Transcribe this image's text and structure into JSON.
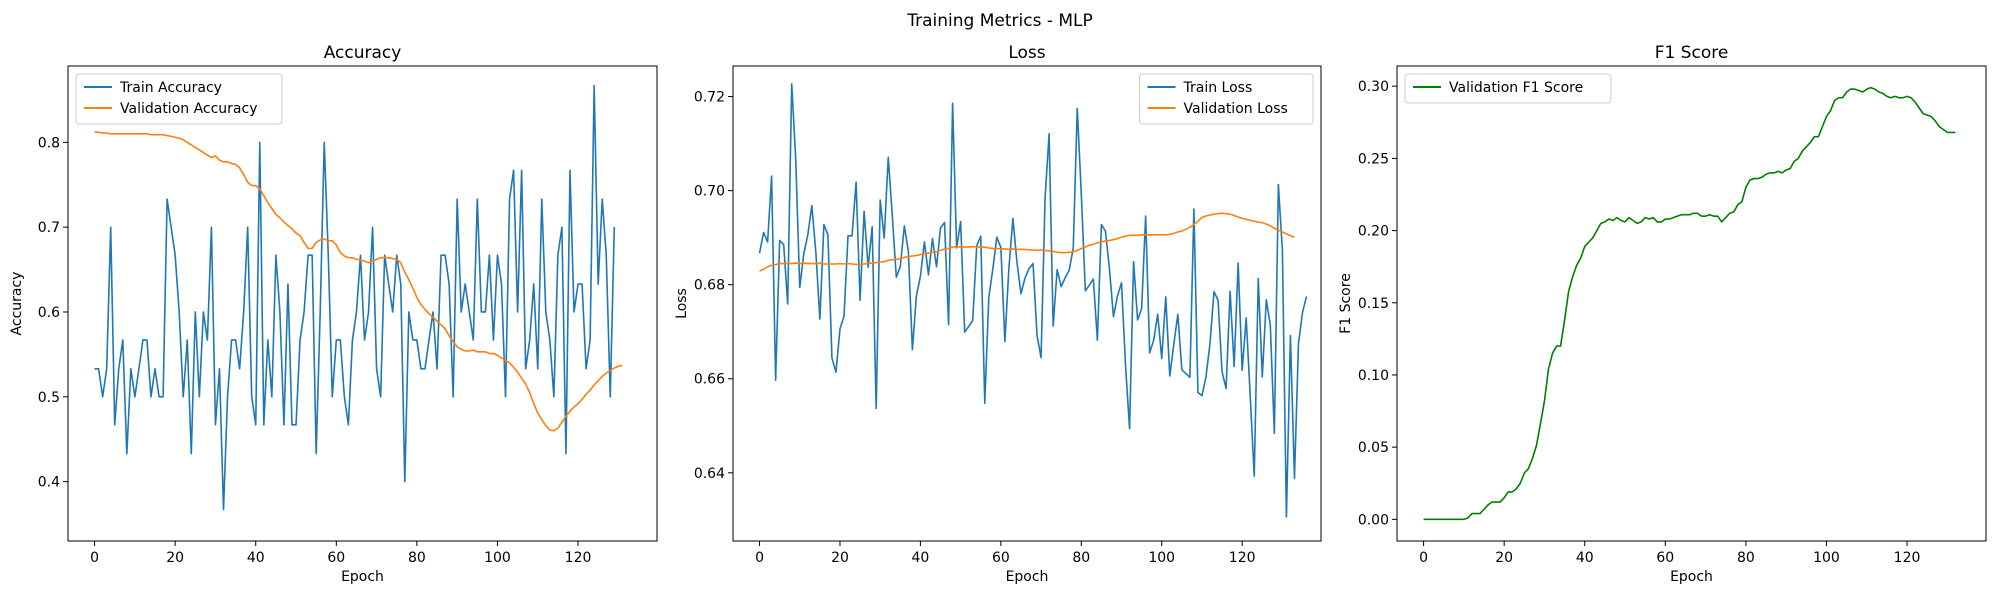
{
  "suptitle": "Training Metrics - MLP",
  "colors": {
    "train": "#1f77b4",
    "validation": "#ff7f0e",
    "f1": "#008000"
  },
  "chart_data": [
    {
      "type": "line",
      "title": "Accuracy",
      "xlabel": "Epoch",
      "ylabel": "Accuracy",
      "xlim": [
        -6.6,
        139.6
      ],
      "ylim": [
        0.33,
        0.89
      ],
      "xticks": [
        0,
        20,
        40,
        60,
        80,
        100,
        120
      ],
      "yticks": [
        0.4,
        0.5,
        0.6,
        0.7,
        0.8
      ],
      "ytick_labels": [
        "0.4",
        "0.5",
        "0.6",
        "0.7",
        "0.8"
      ],
      "grid": false,
      "legend_loc": "upper left",
      "series": [
        {
          "name": "Train Accuracy",
          "color_key": "train",
          "values": [
            0.533,
            0.533,
            0.5,
            0.533,
            0.7,
            0.467,
            0.533,
            0.567,
            0.433,
            0.533,
            0.5,
            0.533,
            0.567,
            0.567,
            0.5,
            0.533,
            0.5,
            0.5,
            0.733,
            0.7,
            0.667,
            0.6,
            0.5,
            0.567,
            0.433,
            0.6,
            0.5,
            0.6,
            0.567,
            0.7,
            0.467,
            0.533,
            0.367,
            0.5,
            0.567,
            0.567,
            0.533,
            0.6,
            0.7,
            0.5,
            0.467,
            0.8,
            0.467,
            0.567,
            0.5,
            0.667,
            0.6,
            0.467,
            0.633,
            0.467,
            0.467,
            0.567,
            0.6,
            0.667,
            0.667,
            0.433,
            0.6,
            0.8,
            0.667,
            0.5,
            0.567,
            0.567,
            0.5,
            0.467,
            0.567,
            0.6,
            0.667,
            0.567,
            0.6,
            0.7,
            0.533,
            0.5,
            0.667,
            0.633,
            0.6,
            0.667,
            0.633,
            0.4,
            0.6,
            0.567,
            0.567,
            0.533,
            0.533,
            0.567,
            0.6,
            0.533,
            0.667,
            0.667,
            0.633,
            0.5,
            0.733,
            0.6,
            0.633,
            0.6,
            0.567,
            0.733,
            0.6,
            0.6,
            0.667,
            0.567,
            0.667,
            0.633,
            0.5,
            0.733,
            0.767,
            0.6,
            0.767,
            0.533,
            0.567,
            0.633,
            0.533,
            0.733,
            0.6,
            0.567,
            0.5,
            0.667,
            0.7,
            0.433,
            0.767,
            0.6,
            0.633,
            0.633,
            0.533,
            0.567,
            0.867,
            0.633,
            0.733,
            0.667,
            0.5,
            0.7
          ]
        },
        {
          "name": "Validation Accuracy",
          "color_key": "validation",
          "values": [
            0.812,
            0.812,
            0.811,
            0.811,
            0.81,
            0.81,
            0.81,
            0.81,
            0.81,
            0.81,
            0.81,
            0.81,
            0.81,
            0.81,
            0.809,
            0.809,
            0.809,
            0.809,
            0.808,
            0.807,
            0.806,
            0.805,
            0.803,
            0.8,
            0.797,
            0.794,
            0.791,
            0.788,
            0.785,
            0.782,
            0.784,
            0.779,
            0.777,
            0.777,
            0.775,
            0.774,
            0.77,
            0.762,
            0.753,
            0.749,
            0.749,
            0.745,
            0.737,
            0.729,
            0.722,
            0.715,
            0.711,
            0.706,
            0.702,
            0.698,
            0.693,
            0.69,
            0.682,
            0.675,
            0.675,
            0.682,
            0.685,
            0.686,
            0.684,
            0.684,
            0.679,
            0.67,
            0.666,
            0.664,
            0.664,
            0.662,
            0.661,
            0.66,
            0.658,
            0.66,
            0.662,
            0.664,
            0.664,
            0.664,
            0.663,
            0.662,
            0.658,
            0.647,
            0.638,
            0.628,
            0.617,
            0.609,
            0.603,
            0.598,
            0.594,
            0.589,
            0.585,
            0.58,
            0.572,
            0.565,
            0.559,
            0.556,
            0.554,
            0.554,
            0.555,
            0.553,
            0.553,
            0.553,
            0.551,
            0.551,
            0.549,
            0.546,
            0.543,
            0.54,
            0.535,
            0.529,
            0.522,
            0.515,
            0.505,
            0.492,
            0.481,
            0.473,
            0.466,
            0.461,
            0.46,
            0.463,
            0.47,
            0.477,
            0.483,
            0.488,
            0.492,
            0.497,
            0.503,
            0.508,
            0.514,
            0.519,
            0.524,
            0.528,
            0.531,
            0.534,
            0.536,
            0.537
          ]
        }
      ]
    },
    {
      "type": "line",
      "title": "Loss",
      "xlabel": "Epoch",
      "ylabel": "Loss",
      "xlim": [
        -6.6,
        139.6
      ],
      "ylim": [
        0.6255,
        0.7265
      ],
      "xticks": [
        0,
        20,
        40,
        60,
        80,
        100,
        120
      ],
      "yticks": [
        0.64,
        0.66,
        0.68,
        0.7,
        0.72
      ],
      "ytick_labels": [
        "0.64",
        "0.66",
        "0.68",
        "0.70",
        "0.72"
      ],
      "grid": false,
      "legend_loc": "upper right",
      "series": [
        {
          "name": "Train Loss",
          "color_key": "train",
          "values": [
            0.6867,
            0.6911,
            0.6891,
            0.7031,
            0.6597,
            0.6894,
            0.6885,
            0.6759,
            0.7227,
            0.7067,
            0.6794,
            0.6866,
            0.6906,
            0.6968,
            0.6869,
            0.6727,
            0.6928,
            0.6906,
            0.6644,
            0.6614,
            0.6706,
            0.6733,
            0.6904,
            0.6904,
            0.7018,
            0.6767,
            0.6956,
            0.6837,
            0.6923,
            0.6537,
            0.698,
            0.6899,
            0.7071,
            0.6948,
            0.6816,
            0.6839,
            0.6925,
            0.6871,
            0.6662,
            0.6776,
            0.6818,
            0.6891,
            0.6821,
            0.6898,
            0.6838,
            0.6921,
            0.6932,
            0.6715,
            0.7186,
            0.6878,
            0.6934,
            0.6699,
            0.6711,
            0.6724,
            0.6883,
            0.6903,
            0.6548,
            0.6773,
            0.6833,
            0.6901,
            0.6879,
            0.6679,
            0.6835,
            0.6941,
            0.6848,
            0.6781,
            0.6814,
            0.6834,
            0.6845,
            0.6692,
            0.6645,
            0.6985,
            0.7121,
            0.6712,
            0.6832,
            0.6796,
            0.6815,
            0.6831,
            0.6878,
            0.7175,
            0.6993,
            0.6787,
            0.6799,
            0.6812,
            0.6682,
            0.6928,
            0.6914,
            0.6834,
            0.6732,
            0.6776,
            0.6804,
            0.6628,
            0.6494,
            0.6849,
            0.6725,
            0.6749,
            0.6946,
            0.6655,
            0.6682,
            0.6737,
            0.6643,
            0.6774,
            0.6606,
            0.6673,
            0.6737,
            0.6619,
            0.6611,
            0.6603,
            0.6961,
            0.6571,
            0.6564,
            0.6604,
            0.6675,
            0.6785,
            0.6767,
            0.6615,
            0.6579,
            0.6786,
            0.6626,
            0.6846,
            0.6618,
            0.6729,
            0.6564,
            0.6393,
            0.6813,
            0.6604,
            0.6768,
            0.6714,
            0.6484,
            0.7013,
            0.6873,
            0.6306,
            0.6692,
            0.6388,
            0.6675,
            0.6741,
            0.6775
          ]
        },
        {
          "name": "Validation Loss",
          "color_key": "validation",
          "values": [
            0.6829,
            0.6833,
            0.6838,
            0.6841,
            0.6843,
            0.6845,
            0.6845,
            0.6845,
            0.6845,
            0.6846,
            0.6845,
            0.6846,
            0.6845,
            0.6845,
            0.6845,
            0.6846,
            0.6844,
            0.6844,
            0.6844,
            0.6844,
            0.6845,
            0.6844,
            0.6845,
            0.6844,
            0.6843,
            0.6843,
            0.6844,
            0.6845,
            0.6846,
            0.6847,
            0.6848,
            0.6849,
            0.6852,
            0.6853,
            0.6854,
            0.6855,
            0.6858,
            0.686,
            0.6861,
            0.6862,
            0.6864,
            0.6866,
            0.6867,
            0.6869,
            0.687,
            0.6873,
            0.6876,
            0.6877,
            0.688,
            0.6881,
            0.688,
            0.688,
            0.688,
            0.6881,
            0.688,
            0.688,
            0.688,
            0.6878,
            0.6877,
            0.6877,
            0.6876,
            0.6876,
            0.6875,
            0.6876,
            0.6875,
            0.6875,
            0.6875,
            0.6874,
            0.6874,
            0.6873,
            0.6874,
            0.6873,
            0.6872,
            0.6871,
            0.6869,
            0.6868,
            0.6868,
            0.6869,
            0.687,
            0.6873,
            0.6877,
            0.688,
            0.6884,
            0.6886,
            0.6889,
            0.6891,
            0.6893,
            0.6894,
            0.6896,
            0.6898,
            0.6901,
            0.6903,
            0.6905,
            0.6905,
            0.6905,
            0.6906,
            0.6906,
            0.6906,
            0.6906,
            0.6906,
            0.6906,
            0.6906,
            0.6907,
            0.6909,
            0.6912,
            0.6914,
            0.6918,
            0.6922,
            0.6928,
            0.6935,
            0.6943,
            0.6946,
            0.6948,
            0.695,
            0.6951,
            0.6952,
            0.6951,
            0.695,
            0.6947,
            0.6944,
            0.6941,
            0.6939,
            0.6937,
            0.6935,
            0.6933,
            0.6932,
            0.6929,
            0.6925,
            0.692,
            0.6916,
            0.6912,
            0.6908,
            0.6904,
            0.6901
          ]
        }
      ]
    },
    {
      "type": "line",
      "title": "F1 Score",
      "xlabel": "Epoch",
      "ylabel": "F1 Score",
      "xlim": [
        -6.6,
        139.6
      ],
      "ylim": [
        -0.015,
        0.314
      ],
      "xticks": [
        0,
        20,
        40,
        60,
        80,
        100,
        120
      ],
      "yticks": [
        0.0,
        0.05,
        0.1,
        0.15,
        0.2,
        0.25,
        0.3
      ],
      "ytick_labels": [
        "0.00",
        "0.05",
        "0.10",
        "0.15",
        "0.20",
        "0.25",
        "0.30"
      ],
      "grid": false,
      "legend_loc": "upper left",
      "series": [
        {
          "name": "Validation F1 Score",
          "color_key": "f1",
          "values": [
            0,
            0,
            0,
            0,
            0,
            0,
            0,
            0,
            0,
            0,
            0,
            0.001,
            0.004,
            0.004,
            0.004,
            0.007,
            0.01,
            0.012,
            0.012,
            0.012,
            0.015,
            0.019,
            0.019,
            0.021,
            0.025,
            0.032,
            0.035,
            0.042,
            0.051,
            0.066,
            0.082,
            0.104,
            0.115,
            0.12,
            0.12,
            0.138,
            0.158,
            0.168,
            0.176,
            0.181,
            0.189,
            0.192,
            0.195,
            0.2,
            0.205,
            0.206,
            0.208,
            0.207,
            0.209,
            0.207,
            0.206,
            0.209,
            0.207,
            0.205,
            0.206,
            0.209,
            0.208,
            0.209,
            0.206,
            0.206,
            0.208,
            0.208,
            0.209,
            0.21,
            0.211,
            0.211,
            0.211,
            0.212,
            0.212,
            0.21,
            0.21,
            0.211,
            0.21,
            0.21,
            0.206,
            0.209,
            0.212,
            0.213,
            0.218,
            0.22,
            0.23,
            0.235,
            0.236,
            0.236,
            0.237,
            0.239,
            0.24,
            0.24,
            0.241,
            0.24,
            0.242,
            0.243,
            0.248,
            0.25,
            0.255,
            0.258,
            0.261,
            0.265,
            0.265,
            0.272,
            0.279,
            0.283,
            0.29,
            0.292,
            0.292,
            0.296,
            0.298,
            0.298,
            0.297,
            0.296,
            0.298,
            0.299,
            0.298,
            0.296,
            0.295,
            0.293,
            0.292,
            0.293,
            0.292,
            0.292,
            0.293,
            0.292,
            0.289,
            0.285,
            0.281,
            0.28,
            0.279,
            0.276,
            0.272,
            0.27,
            0.268,
            0.268,
            0.268
          ]
        }
      ]
    }
  ]
}
